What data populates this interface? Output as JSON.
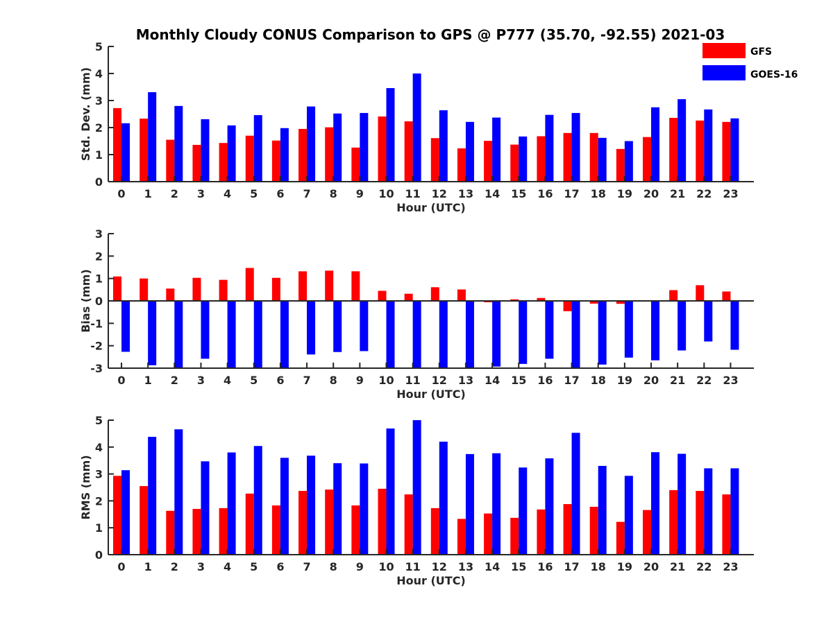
{
  "title": "Monthly Cloudy CONUS Comparison to GPS @ P777 (35.70, -92.55) 2021-03",
  "legend": [
    {
      "name": "GFS",
      "color": "#ff0000"
    },
    {
      "name": "GOES-16",
      "color": "#0000ff"
    }
  ],
  "chart_data": [
    {
      "type": "bar",
      "xlabel": "Hour (UTC)",
      "ylabel": "Std. Dev. (mm)",
      "ylim": [
        0,
        5
      ],
      "yticks": [
        0,
        1,
        2,
        3,
        4,
        5
      ],
      "categories": [
        "0",
        "1",
        "2",
        "3",
        "4",
        "5",
        "6",
        "7",
        "8",
        "9",
        "10",
        "11",
        "12",
        "13",
        "14",
        "15",
        "16",
        "17",
        "18",
        "19",
        "20",
        "21",
        "22",
        "23"
      ],
      "series": [
        {
          "name": "GFS",
          "color": "#ff0000",
          "values": [
            2.72,
            2.33,
            1.55,
            1.36,
            1.43,
            1.7,
            1.52,
            1.95,
            2.01,
            1.26,
            2.41,
            2.23,
            1.61,
            1.23,
            1.51,
            1.37,
            1.68,
            1.8,
            1.8,
            1.21,
            1.65,
            2.36,
            2.26,
            2.21
          ]
        },
        {
          "name": "GOES-16",
          "color": "#0000ff",
          "values": [
            2.16,
            3.31,
            2.8,
            2.31,
            2.08,
            2.46,
            1.98,
            2.78,
            2.52,
            2.54,
            3.46,
            4.0,
            2.64,
            2.21,
            2.37,
            1.67,
            2.47,
            2.54,
            1.62,
            1.5,
            2.75,
            3.05,
            2.67,
            2.34
          ]
        }
      ]
    },
    {
      "type": "bar",
      "xlabel": "Hour (UTC)",
      "ylabel": "Bias (mm)",
      "ylim": [
        -3,
        3
      ],
      "yticks": [
        -3,
        -2,
        -1,
        0,
        1,
        2,
        3
      ],
      "categories": [
        "0",
        "1",
        "2",
        "3",
        "4",
        "5",
        "6",
        "7",
        "8",
        "9",
        "10",
        "11",
        "12",
        "13",
        "14",
        "15",
        "16",
        "17",
        "18",
        "19",
        "20",
        "21",
        "22",
        "23"
      ],
      "series": [
        {
          "name": "GFS",
          "color": "#ff0000",
          "values": [
            1.09,
            1.0,
            0.55,
            1.03,
            0.94,
            1.47,
            1.03,
            1.32,
            1.35,
            1.32,
            0.45,
            0.32,
            0.61,
            0.51,
            -0.06,
            0.07,
            0.13,
            -0.46,
            -0.12,
            -0.13,
            -0.02,
            0.48,
            0.7,
            0.42
          ]
        },
        {
          "name": "GOES-16",
          "color": "#0000ff",
          "values": [
            -2.27,
            -2.87,
            -3.0,
            -2.58,
            -3.0,
            -3.0,
            -3.0,
            -2.39,
            -2.28,
            -2.24,
            -3.0,
            -3.0,
            -3.0,
            -3.0,
            -2.93,
            -2.81,
            -2.58,
            -3.0,
            -2.84,
            -2.53,
            -2.65,
            -2.21,
            -1.81,
            -2.18
          ]
        }
      ]
    },
    {
      "type": "bar",
      "xlabel": "Hour (UTC)",
      "ylabel": "RMS (mm)",
      "ylim": [
        0,
        5
      ],
      "yticks": [
        0,
        1,
        2,
        3,
        4,
        5
      ],
      "categories": [
        "0",
        "1",
        "2",
        "3",
        "4",
        "5",
        "6",
        "7",
        "8",
        "9",
        "10",
        "11",
        "12",
        "13",
        "14",
        "15",
        "16",
        "17",
        "18",
        "19",
        "20",
        "21",
        "22",
        "23"
      ],
      "series": [
        {
          "name": "GFS",
          "color": "#ff0000",
          "values": [
            2.93,
            2.55,
            1.63,
            1.7,
            1.73,
            2.27,
            1.83,
            2.37,
            2.42,
            1.83,
            2.45,
            2.24,
            1.73,
            1.33,
            1.53,
            1.37,
            1.68,
            1.88,
            1.78,
            1.22,
            1.66,
            2.4,
            2.37,
            2.24
          ]
        },
        {
          "name": "GOES-16",
          "color": "#0000ff",
          "values": [
            3.14,
            4.38,
            4.66,
            3.47,
            3.8,
            4.04,
            3.6,
            3.68,
            3.4,
            3.39,
            4.69,
            5.0,
            4.2,
            3.74,
            3.77,
            3.24,
            3.58,
            4.53,
            3.3,
            2.93,
            3.81,
            3.75,
            3.21,
            3.21
          ]
        }
      ]
    }
  ]
}
